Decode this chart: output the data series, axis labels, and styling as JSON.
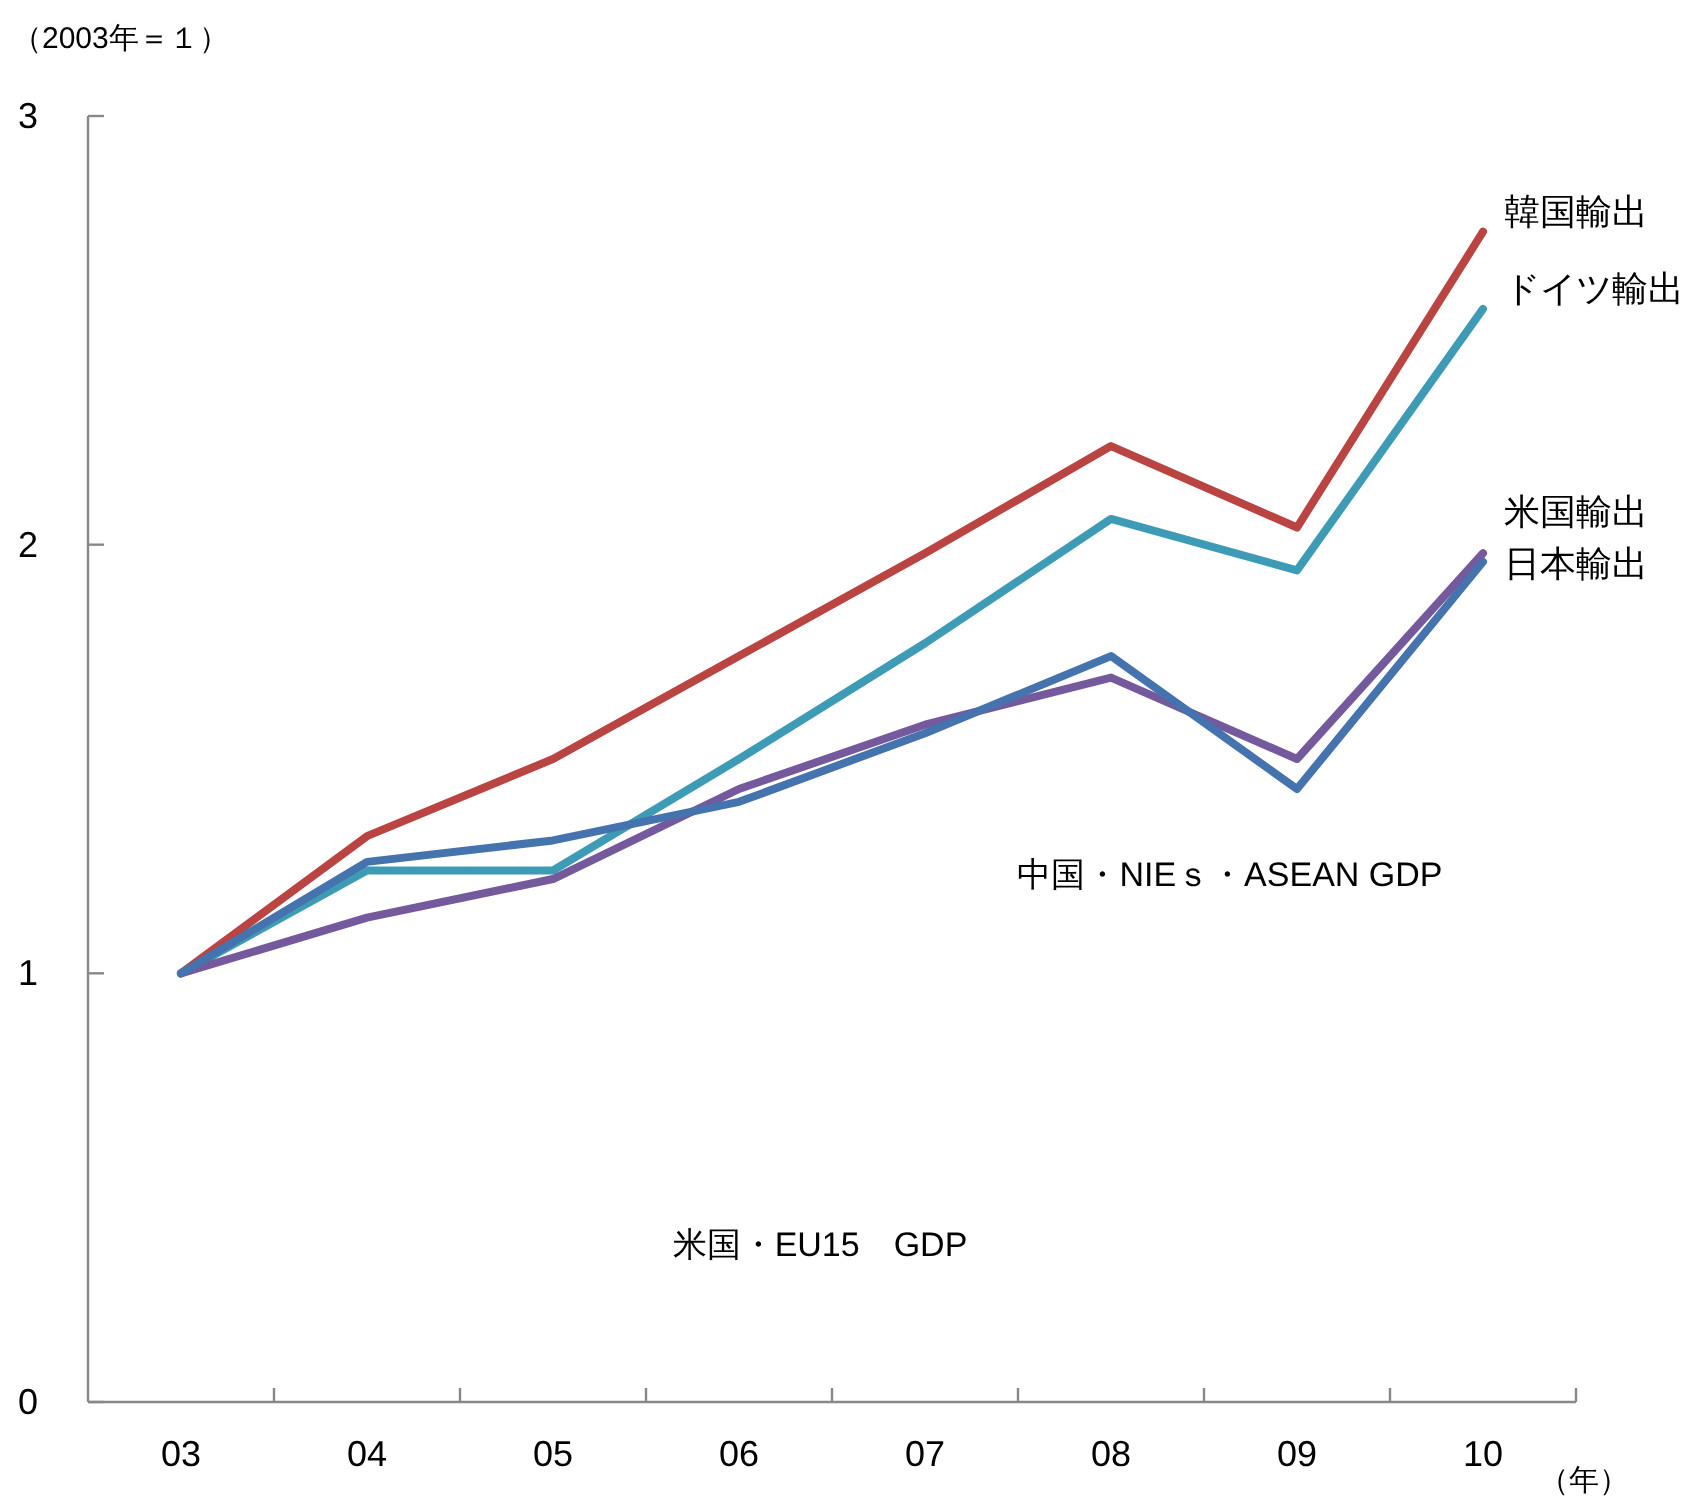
{
  "chart_data": {
    "type": "line",
    "ylabel": "（2003年＝１）",
    "xlabel": "（年）",
    "categories": [
      "03",
      "04",
      "05",
      "06",
      "07",
      "08",
      "09",
      "10"
    ],
    "ylim": [
      0,
      3
    ],
    "yticks": [
      0,
      1,
      2,
      3
    ],
    "grid": false,
    "marker": "none",
    "line_style": "solid",
    "series": [
      {
        "name": "韓国輸出",
        "color": "#b94441",
        "values": [
          1,
          1.32,
          1.5,
          1.74,
          1.98,
          2.23,
          2.04,
          2.73
        ]
      },
      {
        "name": "ドイツ輸出",
        "color": "#3d9bb5",
        "values": [
          1,
          1.24,
          1.24,
          1.5,
          1.77,
          2.06,
          1.94,
          2.55
        ]
      },
      {
        "name": "米国輸出",
        "color": "#74599c",
        "values": [
          1,
          1.13,
          1.22,
          1.43,
          1.58,
          1.69,
          1.5,
          1.98
        ]
      },
      {
        "name": "日本輸出",
        "color": "#4573ae",
        "values": [
          1,
          1.26,
          1.31,
          1.4,
          1.56,
          1.74,
          1.43,
          1.96
        ]
      }
    ],
    "annotations": [
      "中国・NIEｓ・ASEAN GDP",
      "米国・EU15　GDP"
    ]
  }
}
